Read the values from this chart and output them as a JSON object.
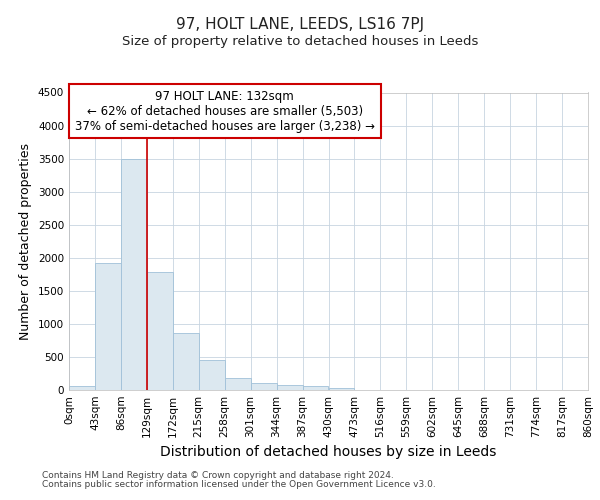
{
  "title": "97, HOLT LANE, LEEDS, LS16 7PJ",
  "subtitle": "Size of property relative to detached houses in Leeds",
  "xlabel": "Distribution of detached houses by size in Leeds",
  "ylabel": "Number of detached properties",
  "footer_line1": "Contains HM Land Registry data © Crown copyright and database right 2024.",
  "footer_line2": "Contains public sector information licensed under the Open Government Licence v3.0.",
  "annotation_line1": "97 HOLT LANE: 132sqm",
  "annotation_line2": "← 62% of detached houses are smaller (5,503)",
  "annotation_line3": "37% of semi-detached houses are larger (3,238) →",
  "bar_edges": [
    0,
    43,
    86,
    129,
    172,
    215,
    258,
    301,
    344,
    387,
    430,
    473,
    516,
    559,
    602,
    645,
    688,
    731,
    774,
    817,
    860
  ],
  "bar_heights": [
    55,
    1920,
    3500,
    1780,
    860,
    460,
    185,
    100,
    75,
    55,
    30,
    0,
    0,
    0,
    0,
    0,
    0,
    0,
    0,
    0
  ],
  "bar_color": "#dce8f0",
  "bar_edgecolor": "#a0c0d8",
  "vline_color": "#cc0000",
  "vline_x": 129,
  "annotation_box_edgecolor": "#cc0000",
  "annotation_box_facecolor": "#ffffff",
  "ylim": [
    0,
    4500
  ],
  "xlim": [
    0,
    860
  ],
  "yticks": [
    0,
    500,
    1000,
    1500,
    2000,
    2500,
    3000,
    3500,
    4000,
    4500
  ],
  "xtick_labels": [
    "0sqm",
    "43sqm",
    "86sqm",
    "129sqm",
    "172sqm",
    "215sqm",
    "258sqm",
    "301sqm",
    "344sqm",
    "387sqm",
    "430sqm",
    "473sqm",
    "516sqm",
    "559sqm",
    "602sqm",
    "645sqm",
    "688sqm",
    "731sqm",
    "774sqm",
    "817sqm",
    "860sqm"
  ],
  "grid_color": "#c8d4e0",
  "bg_color": "#ffffff",
  "title_fontsize": 11,
  "subtitle_fontsize": 9.5,
  "axis_label_fontsize": 9,
  "tick_fontsize": 7.5,
  "footer_fontsize": 6.5,
  "annotation_fontsize": 8.5
}
